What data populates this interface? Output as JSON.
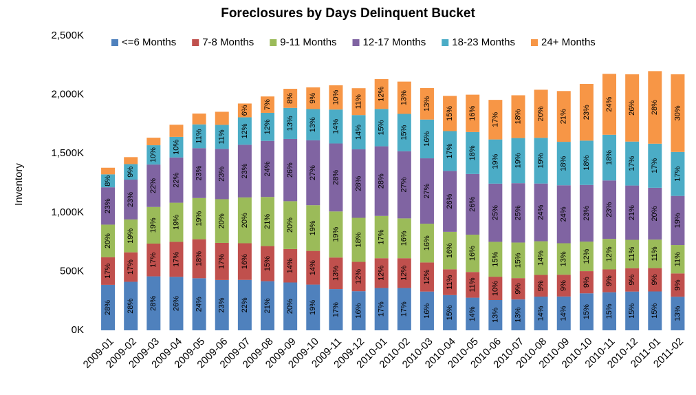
{
  "chart_data": {
    "type": "stacked_bar",
    "title": "Foreclosures by Days Delinquent Bucket",
    "y_label": "Inventory",
    "categories": [
      "2009-01",
      "2009-02",
      "2009-03",
      "2009-04",
      "2009-05",
      "2009-06",
      "2009-07",
      "2009-08",
      "2009-09",
      "2009-10",
      "2009-11",
      "2009-12",
      "2010-01",
      "2010-02",
      "2010-03",
      "2010-04",
      "2010-05",
      "2010-06",
      "2010-07",
      "2010-08",
      "2010-09",
      "2010-10",
      "2010-11",
      "2010-12",
      "2011-01",
      "2011-02"
    ],
    "series": [
      {
        "name": "<=6 Months",
        "color": "#4f81bd",
        "values": [
          386,
          412,
          458,
          454,
          442,
          427,
          428,
          417,
          406,
          388,
          350,
          332,
          359,
          359,
          329,
          299,
          277,
          257,
          262,
          286,
          287,
          314,
          323,
          329,
          330,
          285
        ],
        "data_labels": [
          "28%",
          "28%",
          "28%",
          "26%",
          "24%",
          "23%",
          "22%",
          "21%",
          "20%",
          "19%",
          "17%",
          "16%",
          "17%",
          "17%",
          "16%",
          "15%",
          "14%",
          "13%",
          "13%",
          "14%",
          "14%",
          "15%",
          "15%",
          "15%",
          "15%",
          "13%"
        ]
      },
      {
        "name": "7-8 Months",
        "color": "#c0504d",
        "values": [
          235,
          250,
          278,
          297,
          331,
          315,
          311,
          298,
          284,
          286,
          268,
          249,
          253,
          253,
          247,
          219,
          218,
          198,
          181,
          184,
          185,
          188,
          194,
          198,
          198,
          198
        ],
        "data_labels": [
          "17%",
          "17%",
          "17%",
          "17%",
          "18%",
          "17%",
          "16%",
          "15%",
          "14%",
          "14%",
          "13%",
          "12%",
          "12%",
          "12%",
          "12%",
          "11%",
          "11%",
          "10%",
          "9%",
          "9%",
          "9%",
          "9%",
          "9%",
          "9%",
          "9%",
          "9%"
        ]
      },
      {
        "name": "9-11 Months",
        "color": "#9bbb59",
        "values": [
          276,
          279,
          311,
          332,
          350,
          371,
          389,
          417,
          406,
          388,
          391,
          374,
          359,
          338,
          329,
          318,
          317,
          296,
          302,
          286,
          267,
          251,
          259,
          241,
          242,
          241
        ],
        "data_labels": [
          "20%",
          "19%",
          "19%",
          "19%",
          "19%",
          "20%",
          "20%",
          "21%",
          "20%",
          "19%",
          "19%",
          "18%",
          "17%",
          "16%",
          "16%",
          "16%",
          "16%",
          "15%",
          "15%",
          "14%",
          "13%",
          "12%",
          "12%",
          "11%",
          "11%",
          "11%"
        ]
      },
      {
        "name": "12-17 Months",
        "color": "#8064a2",
        "values": [
          317,
          338,
          360,
          384,
          423,
          427,
          447,
          476,
          528,
          551,
          577,
          581,
          591,
          570,
          555,
          517,
          515,
          494,
          504,
          490,
          492,
          481,
          496,
          461,
          440,
          417
        ],
        "data_labels": [
          "23%",
          "23%",
          "22%",
          "22%",
          "23%",
          "23%",
          "23%",
          "24%",
          "26%",
          "27%",
          "28%",
          "28%",
          "28%",
          "27%",
          "27%",
          "26%",
          "26%",
          "25%",
          "25%",
          "24%",
          "24%",
          "23%",
          "23%",
          "21%",
          "20%",
          "19%"
        ]
      },
      {
        "name": "18-23 Months",
        "color": "#4bacc6",
        "values": [
          110,
          132,
          164,
          175,
          202,
          204,
          233,
          238,
          264,
          265,
          288,
          291,
          317,
          317,
          329,
          338,
          356,
          375,
          383,
          388,
          369,
          376,
          388,
          373,
          374,
          373
        ],
        "data_labels": [
          "8%",
          "9%",
          "10%",
          "10%",
          "11%",
          "11%",
          "12%",
          "12%",
          "13%",
          "13%",
          "14%",
          "14%",
          "15%",
          "15%",
          "16%",
          "17%",
          "18%",
          "19%",
          "19%",
          "19%",
          "18%",
          "18%",
          "18%",
          "17%",
          "17%",
          "17%"
        ]
      },
      {
        "name": "24+ Months",
        "color": "#f79646",
        "values": [
          56,
          59,
          64,
          103,
          92,
          111,
          117,
          139,
          162,
          184,
          206,
          228,
          253,
          274,
          267,
          299,
          317,
          336,
          363,
          408,
          431,
          481,
          517,
          571,
          616,
          659
        ],
        "data_labels": [
          null,
          null,
          null,
          null,
          null,
          null,
          "6%",
          "7%",
          "8%",
          "9%",
          "10%",
          "11%",
          "12%",
          "13%",
          "13%",
          "15%",
          "16%",
          "17%",
          "18%",
          "20%",
          "21%",
          "23%",
          "24%",
          "26%",
          "28%",
          "30%"
        ]
      }
    ],
    "ylim": [
      0,
      2500
    ],
    "yticks": [
      {
        "value": 0,
        "label": "0K"
      },
      {
        "value": 500,
        "label": "500K"
      },
      {
        "value": 1000,
        "label": "1,000K"
      },
      {
        "value": 1500,
        "label": "1,500K"
      },
      {
        "value": 2000,
        "label": "2,000K"
      },
      {
        "value": 2500,
        "label": "2,500K"
      }
    ],
    "grid": false,
    "legend": "top"
  }
}
